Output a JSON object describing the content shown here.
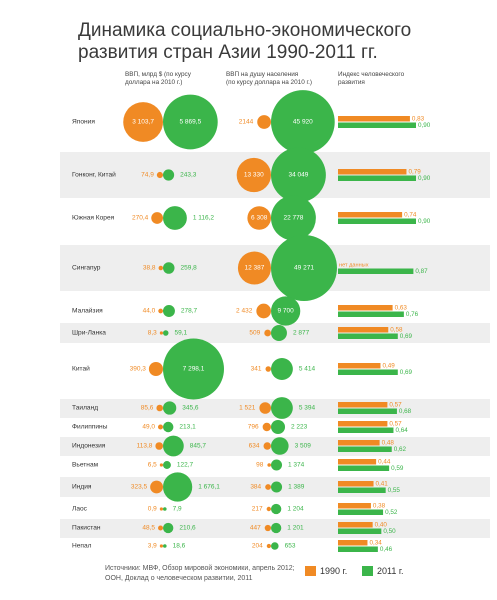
{
  "title_line1": "Динамика социально-экономического",
  "title_line2": "развития стран Азии 1990-2011 гг.",
  "columns": {
    "gdp": {
      "line1": "ВВП, млрд $ (по курсу",
      "line2": "доллара на 2010 г.)"
    },
    "gdp_pc": {
      "line1": "ВВП на душу населения",
      "line2": "(по курсу доллара на 2010 г.)"
    },
    "hdi": {
      "line1": "Индекс человеческого",
      "line2": "развития"
    }
  },
  "colors": {
    "y1990": "#f08a24",
    "y2011": "#3bb54a",
    "row_bg": "#eeeeee"
  },
  "legend": {
    "y1990": "1990 г.",
    "y2011": "2011 г."
  },
  "source_line1": "Источники: МВФ, Обзор мировой экономики, апрель 2012;",
  "source_line2": "ООН, Доклад о человеческом развитии, 2011",
  "chart_data": {
    "type": "table",
    "rows": [
      {
        "country": "Япония",
        "gdp1990": 3103.7,
        "gdp2011": 5869.5,
        "gdp1990_label": "3 103,7",
        "gdp2011_label": "5 869,5",
        "pc1990": 2144,
        "pc2011": 45920,
        "pc1990_label": "2144",
        "pc2011_label": "45 920",
        "hdi1990": 0.83,
        "hdi2011": 0.9,
        "hdi1990_label": "0,83",
        "hdi2011_label": "0,90"
      },
      {
        "country": "Гонконг, Китай",
        "gdp1990": 74.9,
        "gdp2011": 243.3,
        "gdp1990_label": "74,9",
        "gdp2011_label": "243,3",
        "pc1990": 13330,
        "pc2011": 34049,
        "pc1990_label": "13 330",
        "pc2011_label": "34 049",
        "hdi1990": 0.79,
        "hdi2011": 0.9,
        "hdi1990_label": "0,79",
        "hdi2011_label": "0,90"
      },
      {
        "country": "Южная Корея",
        "gdp1990": 270.4,
        "gdp2011": 1116.2,
        "gdp1990_label": "270,4",
        "gdp2011_label": "1 116,2",
        "pc1990": 6308,
        "pc2011": 22778,
        "pc1990_label": "6 308",
        "pc2011_label": "22 778",
        "hdi1990": 0.74,
        "hdi2011": 0.9,
        "hdi1990_label": "0,74",
        "hdi2011_label": "0,90"
      },
      {
        "country": "Сингапур",
        "gdp1990": 38.8,
        "gdp2011": 259.8,
        "gdp1990_label": "38,8",
        "gdp2011_label": "259,8",
        "pc1990": 12387,
        "pc2011": 49271,
        "pc1990_label": "12 387",
        "pc2011_label": "49 271",
        "hdi1990": null,
        "hdi2011": 0.87,
        "hdi1990_label": "нет данных",
        "hdi2011_label": "0,87"
      },
      {
        "country": "Малайзия",
        "gdp1990": 44.0,
        "gdp2011": 278.7,
        "gdp1990_label": "44,0",
        "gdp2011_label": "278,7",
        "pc1990": 2432,
        "pc2011": 9700,
        "pc1990_label": "2 432",
        "pc2011_label": "9 700",
        "hdi1990": 0.63,
        "hdi2011": 0.76,
        "hdi1990_label": "0,63",
        "hdi2011_label": "0,76"
      },
      {
        "country": "Шри-Ланка",
        "gdp1990": 8.3,
        "gdp2011": 59.1,
        "gdp1990_label": "8,3",
        "gdp2011_label": "59,1",
        "pc1990": 509,
        "pc2011": 2877,
        "pc1990_label": "509",
        "pc2011_label": "2 877",
        "hdi1990": 0.58,
        "hdi2011": 0.69,
        "hdi1990_label": "0,58",
        "hdi2011_label": "0,69"
      },
      {
        "country": "Китай",
        "gdp1990": 390.3,
        "gdp2011": 7298.1,
        "gdp1990_label": "390,3",
        "gdp2011_label": "7 298,1",
        "pc1990": 341,
        "pc2011": 5414,
        "pc1990_label": "341",
        "pc2011_label": "5 414",
        "hdi1990": 0.49,
        "hdi2011": 0.69,
        "hdi1990_label": "0,49",
        "hdi2011_label": "0,69"
      },
      {
        "country": "Таиланд",
        "gdp1990": 85.6,
        "gdp2011": 345.6,
        "gdp1990_label": "85,6",
        "gdp2011_label": "345,6",
        "pc1990": 1521,
        "pc2011": 5394,
        "pc1990_label": "1 521",
        "pc2011_label": "5 394",
        "hdi1990": 0.57,
        "hdi2011": 0.68,
        "hdi1990_label": "0,57",
        "hdi2011_label": "0,68"
      },
      {
        "country": "Филиппины",
        "gdp1990": 49.0,
        "gdp2011": 213.1,
        "gdp1990_label": "49,0",
        "gdp2011_label": "213,1",
        "pc1990": 796,
        "pc2011": 2223,
        "pc1990_label": "796",
        "pc2011_label": "2 223",
        "hdi1990": 0.57,
        "hdi2011": 0.64,
        "hdi1990_label": "0,57",
        "hdi2011_label": "0,64"
      },
      {
        "country": "Индонезия",
        "gdp1990": 113.8,
        "gdp2011": 845.7,
        "gdp1990_label": "113,8",
        "gdp2011_label": "845,7",
        "pc1990": 634,
        "pc2011": 3509,
        "pc1990_label": "634",
        "pc2011_label": "3 509",
        "hdi1990": 0.48,
        "hdi2011": 0.62,
        "hdi1990_label": "0,48",
        "hdi2011_label": "0,62"
      },
      {
        "country": "Вьетнам",
        "gdp1990": 6.5,
        "gdp2011": 122.7,
        "gdp1990_label": "6,5",
        "gdp2011_label": "122,7",
        "pc1990": 98,
        "pc2011": 1374,
        "pc1990_label": "98",
        "pc2011_label": "1 374",
        "hdi1990": 0.44,
        "hdi2011": 0.59,
        "hdi1990_label": "0,44",
        "hdi2011_label": "0,59"
      },
      {
        "country": "Индия",
        "gdp1990": 323.5,
        "gdp2011": 1676.1,
        "gdp1990_label": "323,5",
        "gdp2011_label": "1 676,1",
        "pc1990": 384,
        "pc2011": 1389,
        "pc1990_label": "384",
        "pc2011_label": "1 389",
        "hdi1990": 0.41,
        "hdi2011": 0.55,
        "hdi1990_label": "0,41",
        "hdi2011_label": "0,55"
      },
      {
        "country": "Лаос",
        "gdp1990": 0.9,
        "gdp2011": 7.9,
        "gdp1990_label": "0,9",
        "gdp2011_label": "7,9",
        "pc1990": 217,
        "pc2011": 1204,
        "pc1990_label": "217",
        "pc2011_label": "1 204",
        "hdi1990": 0.38,
        "hdi2011": 0.52,
        "hdi1990_label": "0,38",
        "hdi2011_label": "0,52"
      },
      {
        "country": "Пакистан",
        "gdp1990": 48.5,
        "gdp2011": 210.6,
        "gdp1990_label": "48,5",
        "gdp2011_label": "210,6",
        "pc1990": 447,
        "pc2011": 1201,
        "pc1990_label": "447",
        "pc2011_label": "1 201",
        "hdi1990": 0.4,
        "hdi2011": 0.5,
        "hdi1990_label": "0,40",
        "hdi2011_label": "0,50"
      },
      {
        "country": "Непал",
        "gdp1990": 3.9,
        "gdp2011": 18.6,
        "gdp1990_label": "3,9",
        "gdp2011_label": "18,6",
        "pc1990": 204,
        "pc2011": 653,
        "pc1990_label": "204",
        "pc2011_label": "653",
        "hdi1990": 0.34,
        "hdi2011": 0.46,
        "hdi1990_label": "0,34",
        "hdi2011_label": "0,46"
      }
    ]
  }
}
